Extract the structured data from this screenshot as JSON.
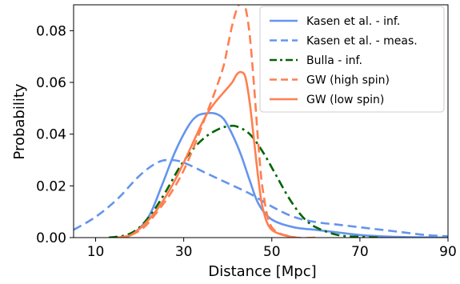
{
  "chart_data": {
    "type": "line",
    "title": "",
    "xlabel": "Distance [Mpc]",
    "ylabel": "Probability",
    "xlim": [
      5,
      90
    ],
    "ylim": [
      0,
      0.09
    ],
    "xticks": [
      10,
      30,
      50,
      70,
      90
    ],
    "xtick_labels": [
      "10",
      "30",
      "50",
      "70",
      "90"
    ],
    "yticks": [
      0.0,
      0.02,
      0.04,
      0.06,
      0.08
    ],
    "ytick_labels": [
      "0.00",
      "0.02",
      "0.04",
      "0.06",
      "0.08"
    ],
    "grid": false,
    "legend_position": "top-right",
    "series": [
      {
        "name": "Kasen et al. - inf.",
        "color": "#6495ed",
        "style": "solid",
        "x": [
          14,
          18,
          22,
          25,
          28,
          31,
          33,
          35,
          37,
          39,
          41,
          43,
          45,
          47,
          50,
          55,
          60,
          65,
          70,
          75,
          80,
          90
        ],
        "y": [
          0.0,
          0.001,
          0.008,
          0.02,
          0.033,
          0.043,
          0.047,
          0.048,
          0.048,
          0.046,
          0.04,
          0.032,
          0.022,
          0.013,
          0.007,
          0.004,
          0.003,
          0.002,
          0.001,
          0.0005,
          0.0002,
          0.0
        ]
      },
      {
        "name": "Kasen et al. - meas.",
        "color": "#6495ed",
        "style": "dashed",
        "x": [
          5,
          10,
          15,
          20,
          24,
          27,
          30,
          35,
          40,
          45,
          50,
          55,
          60,
          65,
          70,
          75,
          80,
          85,
          90
        ],
        "y": [
          0.003,
          0.008,
          0.015,
          0.024,
          0.029,
          0.03,
          0.029,
          0.025,
          0.021,
          0.017,
          0.012,
          0.008,
          0.006,
          0.005,
          0.004,
          0.003,
          0.002,
          0.001,
          0.0005
        ]
      },
      {
        "name": "Bulla - inf.",
        "color": "#006400",
        "style": "dashdot",
        "x": [
          13,
          17,
          20,
          23,
          26,
          29,
          32,
          35,
          38,
          40,
          42,
          45,
          48,
          51,
          54,
          57,
          60,
          65,
          70,
          75
        ],
        "y": [
          0.0,
          0.001,
          0.004,
          0.01,
          0.018,
          0.027,
          0.034,
          0.039,
          0.042,
          0.043,
          0.043,
          0.04,
          0.033,
          0.024,
          0.015,
          0.008,
          0.004,
          0.001,
          0.0003,
          0.0
        ]
      },
      {
        "name": "GW (high spin)",
        "color": "#ff7f50",
        "style": "dashed",
        "x": [
          15,
          18,
          21,
          24,
          27,
          30,
          33,
          35,
          37,
          39,
          40,
          41,
          42,
          43,
          44,
          45,
          46,
          47,
          48,
          50,
          55,
          60
        ],
        "y": [
          0.0,
          0.001,
          0.004,
          0.01,
          0.017,
          0.026,
          0.038,
          0.047,
          0.056,
          0.066,
          0.074,
          0.082,
          0.088,
          0.091,
          0.089,
          0.078,
          0.058,
          0.035,
          0.018,
          0.004,
          0.0002,
          0.0
        ]
      },
      {
        "name": "GW (low spin)",
        "color": "#ff7f50",
        "style": "solid",
        "x": [
          15,
          18,
          21,
          24,
          27,
          30,
          33,
          35,
          37,
          39,
          41,
          42,
          43,
          44,
          45,
          46,
          47,
          48,
          50,
          55
        ],
        "y": [
          0.0,
          0.001,
          0.005,
          0.011,
          0.019,
          0.029,
          0.04,
          0.047,
          0.052,
          0.056,
          0.06,
          0.063,
          0.064,
          0.062,
          0.052,
          0.037,
          0.022,
          0.011,
          0.003,
          0.0
        ]
      }
    ]
  }
}
